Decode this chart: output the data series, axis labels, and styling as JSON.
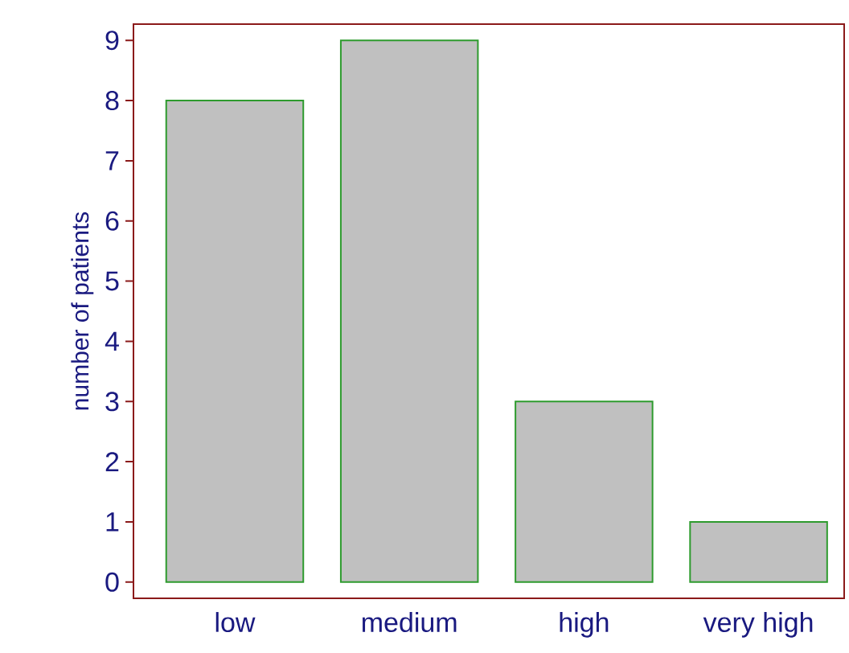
{
  "chart_data": {
    "type": "bar",
    "ylabel": "number of patients",
    "categories": [
      "low",
      "medium",
      "high",
      "very high"
    ],
    "values": [
      8,
      9,
      3,
      1
    ],
    "color": "#c0c0c0",
    "ylim": [
      -0.27,
      9.27
    ],
    "yticks": [
      0,
      1,
      2,
      3,
      4,
      5,
      6,
      7,
      8,
      9
    ],
    "grid": false
  }
}
